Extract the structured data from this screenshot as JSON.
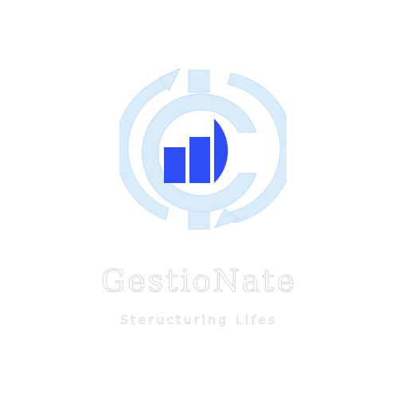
{
  "logo": {
    "icon": "gestionate-logo-icon",
    "brand_name": "GestioNate",
    "tagline": "Steructuring Lifes",
    "colors": {
      "ring": "#d9ecfb",
      "ring_outline": "#b9d6f0",
      "bars": "#2d4df5",
      "background": "#ffffff",
      "text_outline": "#c9ced8"
    }
  }
}
